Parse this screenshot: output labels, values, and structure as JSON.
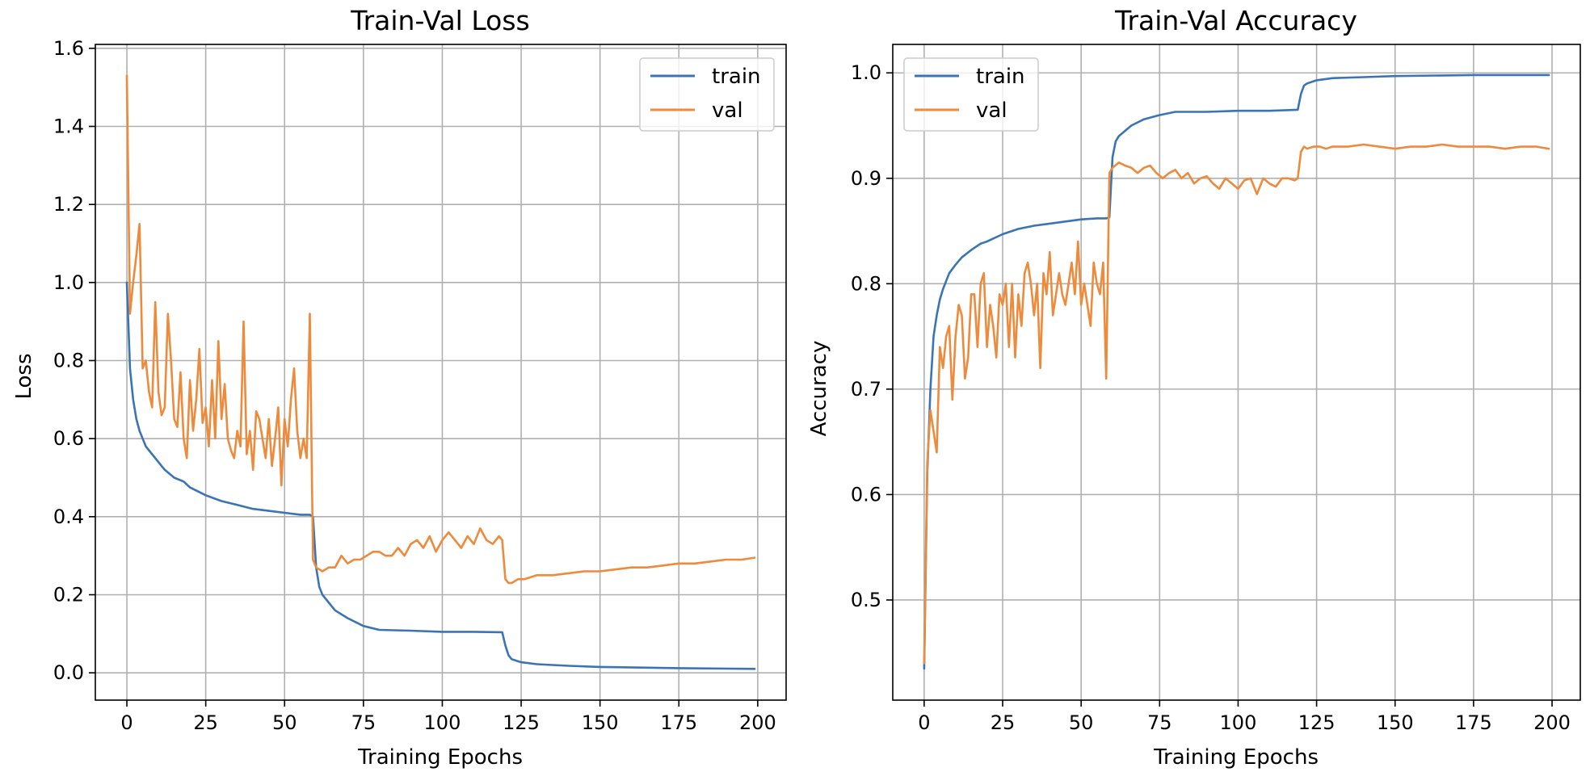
{
  "colors": {
    "train": "#3a74b4",
    "val": "#ee8a3c"
  },
  "chart_data": [
    {
      "type": "line",
      "title": "Train-Val Loss",
      "xlabel": "Training Epochs",
      "ylabel": "Loss",
      "xlim": [
        -10,
        209
      ],
      "ylim": [
        -0.07,
        1.61
      ],
      "xticks": [
        0,
        25,
        50,
        75,
        100,
        125,
        150,
        175,
        200
      ],
      "yticks": [
        0.0,
        0.2,
        0.4,
        0.6,
        0.8,
        1.0,
        1.2,
        1.4,
        1.6
      ],
      "ytick_decimals": 1,
      "grid": true,
      "legend_position": "upper right",
      "series": [
        {
          "name": "train",
          "x": [
            0,
            1,
            2,
            3,
            4,
            6,
            8,
            10,
            12,
            15,
            18,
            20,
            25,
            30,
            35,
            40,
            45,
            50,
            55,
            58,
            59,
            60,
            61,
            62,
            64,
            66,
            70,
            75,
            80,
            90,
            100,
            110,
            119,
            120,
            121,
            122,
            125,
            130,
            140,
            150,
            175,
            199
          ],
          "values": [
            1.0,
            0.78,
            0.7,
            0.65,
            0.62,
            0.58,
            0.56,
            0.54,
            0.52,
            0.5,
            0.49,
            0.475,
            0.455,
            0.44,
            0.43,
            0.42,
            0.415,
            0.41,
            0.405,
            0.405,
            0.4,
            0.27,
            0.22,
            0.2,
            0.18,
            0.16,
            0.14,
            0.12,
            0.11,
            0.108,
            0.105,
            0.105,
            0.104,
            0.07,
            0.045,
            0.035,
            0.027,
            0.022,
            0.018,
            0.015,
            0.012,
            0.01
          ]
        },
        {
          "name": "val",
          "x": [
            0,
            1,
            2,
            3,
            4,
            5,
            6,
            7,
            8,
            9,
            10,
            11,
            12,
            13,
            14,
            15,
            16,
            17,
            18,
            19,
            20,
            21,
            22,
            23,
            24,
            25,
            26,
            27,
            28,
            29,
            30,
            31,
            32,
            33,
            34,
            35,
            36,
            37,
            38,
            39,
            40,
            41,
            42,
            43,
            44,
            45,
            46,
            47,
            48,
            49,
            50,
            51,
            52,
            53,
            54,
            55,
            56,
            57,
            58,
            59,
            60,
            62,
            64,
            66,
            68,
            70,
            72,
            74,
            76,
            78,
            80,
            82,
            84,
            86,
            88,
            90,
            92,
            94,
            96,
            98,
            100,
            102,
            104,
            106,
            108,
            110,
            112,
            114,
            116,
            118,
            119,
            120,
            121,
            122,
            124,
            126,
            128,
            130,
            135,
            140,
            145,
            150,
            155,
            160,
            165,
            170,
            175,
            180,
            185,
            190,
            195,
            199
          ],
          "values": [
            1.53,
            0.92,
            1.0,
            1.07,
            1.15,
            0.78,
            0.8,
            0.72,
            0.68,
            0.95,
            0.72,
            0.66,
            0.68,
            0.92,
            0.8,
            0.65,
            0.63,
            0.77,
            0.6,
            0.55,
            0.75,
            0.62,
            0.7,
            0.83,
            0.64,
            0.68,
            0.58,
            0.75,
            0.6,
            0.85,
            0.65,
            0.74,
            0.6,
            0.57,
            0.55,
            0.62,
            0.58,
            0.9,
            0.56,
            0.62,
            0.52,
            0.67,
            0.65,
            0.6,
            0.55,
            0.65,
            0.53,
            0.6,
            0.68,
            0.48,
            0.65,
            0.58,
            0.7,
            0.78,
            0.62,
            0.55,
            0.6,
            0.55,
            0.92,
            0.29,
            0.27,
            0.26,
            0.27,
            0.27,
            0.3,
            0.28,
            0.29,
            0.29,
            0.3,
            0.31,
            0.31,
            0.3,
            0.3,
            0.32,
            0.3,
            0.33,
            0.34,
            0.32,
            0.35,
            0.31,
            0.34,
            0.36,
            0.34,
            0.32,
            0.35,
            0.33,
            0.37,
            0.34,
            0.33,
            0.35,
            0.34,
            0.24,
            0.23,
            0.23,
            0.24,
            0.24,
            0.245,
            0.25,
            0.25,
            0.255,
            0.26,
            0.26,
            0.265,
            0.27,
            0.27,
            0.275,
            0.28,
            0.28,
            0.285,
            0.29,
            0.29,
            0.295
          ]
        }
      ]
    },
    {
      "type": "line",
      "title": "Train-Val Accuracy",
      "xlabel": "Training Epochs",
      "ylabel": "Accuracy",
      "xlim": [
        -10,
        209
      ],
      "ylim": [
        0.405,
        1.027
      ],
      "xticks": [
        0,
        25,
        50,
        75,
        100,
        125,
        150,
        175,
        200
      ],
      "yticks": [
        0.5,
        0.6,
        0.7,
        0.8,
        0.9,
        1.0
      ],
      "ytick_decimals": 1,
      "grid": true,
      "legend_position": "upper left",
      "series": [
        {
          "name": "train",
          "x": [
            0,
            1,
            2,
            3,
            4,
            5,
            6,
            8,
            10,
            12,
            15,
            18,
            20,
            25,
            30,
            35,
            40,
            45,
            50,
            55,
            58,
            59,
            60,
            61,
            62,
            64,
            66,
            70,
            75,
            80,
            90,
            100,
            110,
            119,
            120,
            121,
            122,
            125,
            130,
            140,
            150,
            175,
            199
          ],
          "values": [
            0.435,
            0.62,
            0.7,
            0.75,
            0.77,
            0.785,
            0.795,
            0.81,
            0.818,
            0.825,
            0.832,
            0.838,
            0.84,
            0.847,
            0.852,
            0.855,
            0.857,
            0.859,
            0.861,
            0.862,
            0.862,
            0.863,
            0.92,
            0.935,
            0.94,
            0.945,
            0.95,
            0.956,
            0.96,
            0.963,
            0.963,
            0.964,
            0.964,
            0.965,
            0.98,
            0.988,
            0.99,
            0.993,
            0.995,
            0.996,
            0.997,
            0.998,
            0.998
          ]
        },
        {
          "name": "val",
          "x": [
            0,
            1,
            2,
            3,
            4,
            5,
            6,
            7,
            8,
            9,
            10,
            11,
            12,
            13,
            14,
            15,
            16,
            17,
            18,
            19,
            20,
            21,
            22,
            23,
            24,
            25,
            26,
            27,
            28,
            29,
            30,
            31,
            32,
            33,
            34,
            35,
            36,
            37,
            38,
            39,
            40,
            41,
            42,
            43,
            44,
            45,
            46,
            47,
            48,
            49,
            50,
            51,
            52,
            53,
            54,
            55,
            56,
            57,
            58,
            59,
            60,
            62,
            64,
            66,
            68,
            70,
            72,
            74,
            76,
            78,
            80,
            82,
            84,
            86,
            88,
            90,
            92,
            94,
            96,
            98,
            100,
            102,
            104,
            106,
            108,
            110,
            112,
            114,
            116,
            118,
            119,
            120,
            121,
            122,
            124,
            126,
            128,
            130,
            135,
            140,
            145,
            150,
            155,
            160,
            165,
            170,
            175,
            180,
            185,
            190,
            195,
            199
          ],
          "values": [
            0.44,
            0.63,
            0.68,
            0.66,
            0.64,
            0.74,
            0.72,
            0.75,
            0.76,
            0.69,
            0.75,
            0.78,
            0.77,
            0.71,
            0.73,
            0.79,
            0.79,
            0.74,
            0.8,
            0.81,
            0.74,
            0.78,
            0.76,
            0.73,
            0.79,
            0.78,
            0.8,
            0.74,
            0.8,
            0.73,
            0.79,
            0.76,
            0.81,
            0.82,
            0.8,
            0.77,
            0.8,
            0.72,
            0.81,
            0.79,
            0.83,
            0.77,
            0.79,
            0.81,
            0.79,
            0.78,
            0.8,
            0.82,
            0.79,
            0.84,
            0.78,
            0.8,
            0.78,
            0.76,
            0.82,
            0.8,
            0.79,
            0.82,
            0.71,
            0.905,
            0.91,
            0.915,
            0.912,
            0.91,
            0.905,
            0.91,
            0.912,
            0.905,
            0.9,
            0.905,
            0.908,
            0.9,
            0.905,
            0.895,
            0.9,
            0.902,
            0.895,
            0.89,
            0.9,
            0.895,
            0.89,
            0.898,
            0.9,
            0.885,
            0.9,
            0.895,
            0.892,
            0.9,
            0.9,
            0.898,
            0.9,
            0.925,
            0.93,
            0.928,
            0.93,
            0.93,
            0.928,
            0.93,
            0.93,
            0.932,
            0.93,
            0.928,
            0.93,
            0.93,
            0.932,
            0.93,
            0.93,
            0.93,
            0.928,
            0.93,
            0.93,
            0.928
          ]
        }
      ]
    }
  ]
}
